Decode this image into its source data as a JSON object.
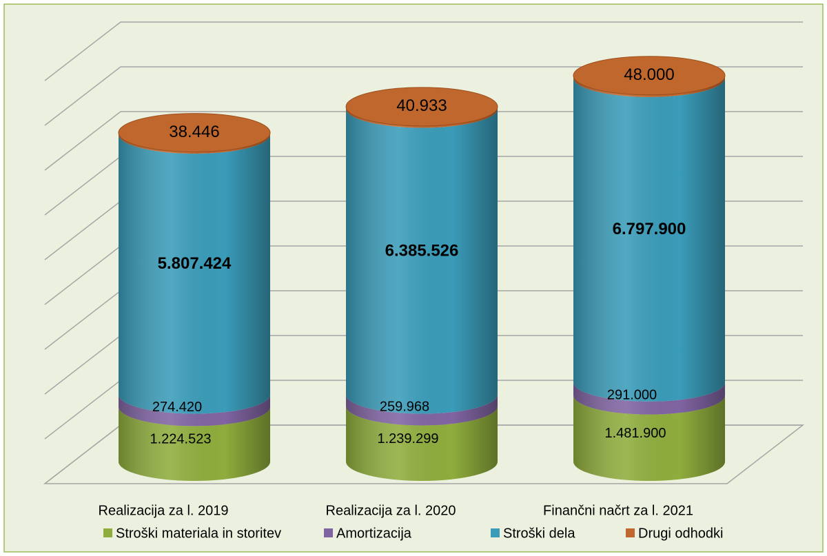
{
  "chart_data": {
    "type": "cylinder-stacked",
    "categories": [
      "Realizacija za l. 2019",
      "Realizacija za l. 2020",
      "Finančni načrt za l. 2021"
    ],
    "series": [
      {
        "name": "Stroški materiala in storitev",
        "color": "#8fad3d",
        "values": [
          1224523,
          1239299,
          1481900
        ],
        "value_labels": [
          "1.224.523",
          "1.239.299",
          "1.481.900"
        ]
      },
      {
        "name": "Amortizacija",
        "color": "#8064a2",
        "values": [
          274420,
          259968,
          291000
        ],
        "value_labels": [
          "274.420",
          "259.968",
          "291.000"
        ]
      },
      {
        "name": "Stroški dela",
        "color": "#3a9cb9",
        "values": [
          5807424,
          6385526,
          6797900
        ],
        "value_labels": [
          "5.807.424",
          "6.385.526",
          "6.797.900"
        ]
      },
      {
        "name": "Drugi odhodki",
        "color": "#c0672e",
        "values": [
          38446,
          40933,
          48000
        ],
        "value_labels": [
          "38.446",
          "40.933",
          "48.000"
        ]
      }
    ],
    "ylim": [
      0,
      9000000
    ],
    "yticks": [
      0,
      1000000,
      2000000,
      3000000,
      4000000,
      5000000,
      6000000,
      7000000,
      8000000,
      9000000
    ],
    "grid": true,
    "legend": "bottom"
  }
}
